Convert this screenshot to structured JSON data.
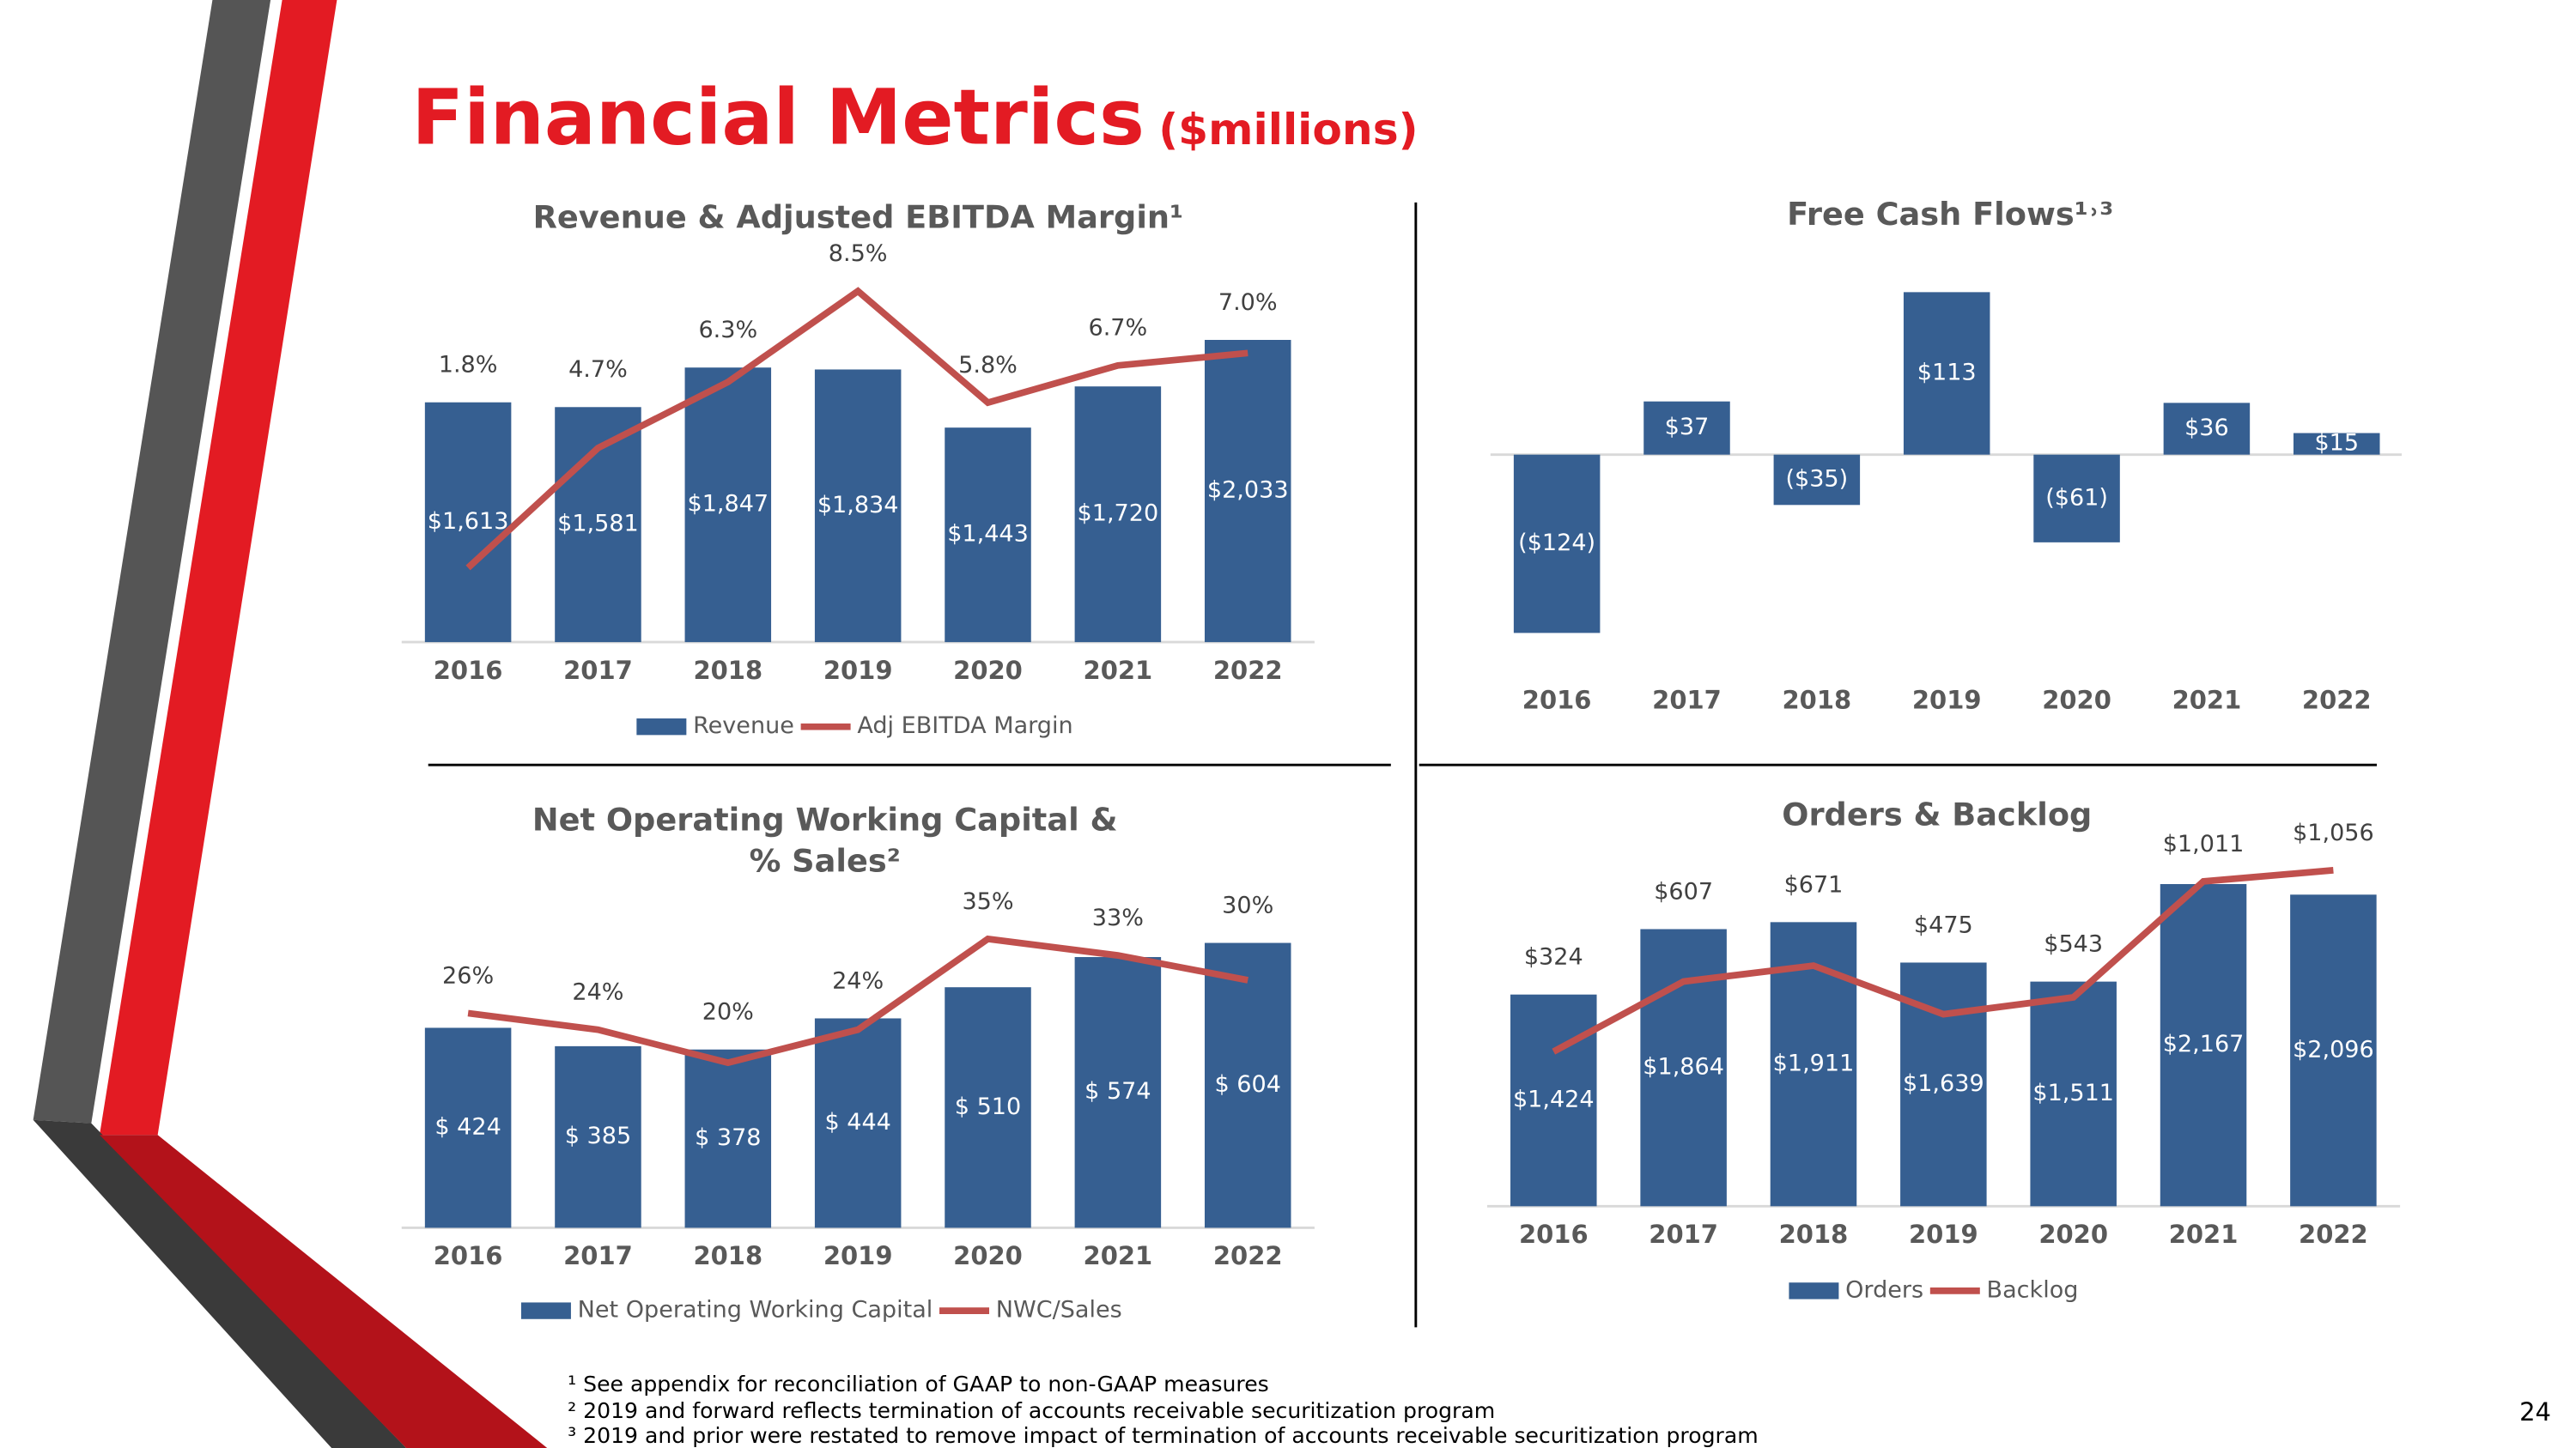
{
  "title": "Financial Metrics",
  "subtitle": "($millions)",
  "footnotes": [
    "¹ See appendix for reconciliation of GAAP to non-GAAP measures",
    "² 2019 and forward reflects termination of accounts receivable securitization program",
    "³ 2019 and prior were restated to remove impact of termination of accounts receivable securitization program"
  ],
  "page_number": 24,
  "chart_data": [
    {
      "type": "bar",
      "title": "Revenue & Adjusted EBITDA Margin¹",
      "categories": [
        "2016",
        "2017",
        "2018",
        "2019",
        "2020",
        "2021",
        "2022"
      ],
      "series": [
        {
          "name": "Revenue",
          "type": "bar",
          "color": "#365f91",
          "values": [
            1613,
            1581,
            1847,
            1834,
            1443,
            1720,
            2033
          ],
          "value_labels": [
            "$1,613",
            "$1,581",
            "$1,847",
            "$1,834",
            "$1,443",
            "$1,720",
            "$2,033"
          ]
        },
        {
          "name": "Adj EBITDA Margin",
          "type": "line",
          "color": "#c0504d",
          "axis": "y2",
          "values": [
            1.8,
            4.7,
            6.3,
            8.5,
            5.8,
            6.7,
            7.0
          ],
          "value_labels": [
            "1.8%",
            "4.7%",
            "6.3%",
            "8.5%",
            "5.8%",
            "6.7%",
            "7.0%"
          ]
        }
      ],
      "ylim": [
        0,
        2500
      ],
      "y2lim": [
        0,
        9
      ],
      "legend": "bottom"
    },
    {
      "type": "bar",
      "title": "Free Cash Flows¹˒³",
      "categories": [
        "2016",
        "2017",
        "2018",
        "2019",
        "2020",
        "2021",
        "2022"
      ],
      "series": [
        {
          "type": "bar",
          "color": "#365f91",
          "values": [
            -124,
            37,
            -35,
            113,
            -61,
            36,
            15
          ],
          "value_labels": [
            "($124)",
            "$37",
            "($35)",
            "$113",
            "($61)",
            "$36",
            "$15"
          ]
        }
      ],
      "ylim": [
        -150,
        150
      ]
    },
    {
      "type": "bar",
      "title": [
        "Net Operating Working Capital &",
        "% Sales²"
      ],
      "categories": [
        "2016",
        "2017",
        "2018",
        "2019",
        "2020",
        "2021",
        "2022"
      ],
      "series": [
        {
          "name": "Net Operating Working Capital",
          "type": "bar",
          "color": "#365f91",
          "values": [
            424,
            385,
            378,
            444,
            510,
            574,
            604
          ],
          "value_labels": [
            "$ 424",
            "$ 385",
            "$ 378",
            "$ 444",
            "$ 510",
            "$ 574",
            "$ 604"
          ]
        },
        {
          "name": "NWC/Sales",
          "type": "line",
          "color": "#c0504d",
          "axis": "y2",
          "values": [
            26,
            24,
            20,
            24,
            35,
            33,
            30
          ],
          "value_labels": [
            "26%",
            "24%",
            "20%",
            "24%",
            "35%",
            "33%",
            "30%"
          ]
        }
      ],
      "ylim": [
        0,
        700
      ],
      "y2lim": [
        0,
        40
      ],
      "legend": "bottom"
    },
    {
      "type": "bar",
      "title": "Orders & Backlog",
      "categories": [
        "2016",
        "2017",
        "2018",
        "2019",
        "2020",
        "2021",
        "2022"
      ],
      "series": [
        {
          "name": "Orders",
          "type": "bar",
          "color": "#365f91",
          "values": [
            1424,
            1864,
            1911,
            1639,
            1511,
            2167,
            2096
          ],
          "value_labels": [
            "$1,424",
            "$1,864",
            "$1,911",
            "$1,639",
            "$1,511",
            "$2,167",
            "$2,096"
          ]
        },
        {
          "name": "Backlog",
          "type": "line",
          "color": "#c0504d",
          "axis": "y2",
          "values": [
            324,
            607,
            671,
            475,
            543,
            1011,
            1056
          ],
          "value_labels": [
            "$324",
            "$607",
            "$671",
            "$475",
            "$543",
            "$1,011",
            "$1,056"
          ]
        }
      ],
      "ylim": [
        0,
        2500
      ],
      "y2lim": [
        -300,
        1200
      ],
      "legend": "bottom"
    }
  ]
}
